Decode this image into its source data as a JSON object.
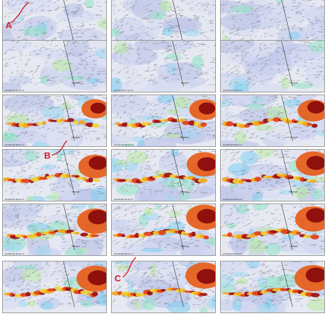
{
  "annotations": {
    "label_a": "A",
    "label_b": "B",
    "label_c": "C",
    "color": "#d0202a"
  },
  "panels": [
    {
      "row": 1,
      "col": 1,
      "intensity": 0.05,
      "time": "2013/02/28 07:00 UT",
      "place": "Midnight"
    },
    {
      "row": 1,
      "col": 2,
      "intensity": 0.05,
      "time": "2013/02/28 07:10 UT",
      "place": "Midnight"
    },
    {
      "row": 1,
      "col": 3,
      "intensity": 0.05,
      "time": "2013/02/28 07:20 UT",
      "place": "Midnight"
    },
    {
      "row": 2,
      "col": 1,
      "intensity": 0.12,
      "time": "2013/02/28 07:30 UT",
      "place": "Midnight"
    },
    {
      "row": 2,
      "col": 2,
      "intensity": 0.14,
      "time": "2013/02/28 07:40 UT",
      "place": "Midnight"
    },
    {
      "row": 2,
      "col": 3,
      "intensity": 0.16,
      "time": "2013/02/28 07:50 UT",
      "place": "Midnight"
    },
    {
      "row": 3,
      "col": 1,
      "intensity": 0.55,
      "time": "2013/02/28 08:00 UT",
      "place": "Midnight"
    },
    {
      "row": 3,
      "col": 2,
      "intensity": 0.65,
      "time": "2013/02/28 08:10 UT",
      "place": "Midnight"
    },
    {
      "row": 3,
      "col": 3,
      "intensity": 0.7,
      "time": "2013/02/28 08:20 UT",
      "place": "Midnight"
    },
    {
      "row": 4,
      "col": 1,
      "intensity": 0.8,
      "time": "2013/02/28 08:30 UT",
      "place": "Midnight"
    },
    {
      "row": 4,
      "col": 2,
      "intensity": 0.85,
      "time": "2013/02/28 08:40 UT",
      "place": "Midnight"
    },
    {
      "row": 4,
      "col": 3,
      "intensity": 0.85,
      "time": "2013/02/28 08:50 UT",
      "place": "Midnight"
    },
    {
      "row": 5,
      "col": 1,
      "intensity": 0.9,
      "time": "2013/02/28 09:00 UT",
      "place": "Midnight"
    },
    {
      "row": 5,
      "col": 2,
      "intensity": 0.9,
      "time": "2013/02/28 09:10 UT",
      "place": "Midnight"
    },
    {
      "row": 5,
      "col": 3,
      "intensity": 0.9,
      "time": "2013/02/28 09:20 UT",
      "place": "Midnight"
    },
    {
      "row": 6,
      "col": 1,
      "intensity": 0.95,
      "time": "",
      "place": ""
    },
    {
      "row": 6,
      "col": 2,
      "intensity": 0.95,
      "time": "",
      "place": ""
    },
    {
      "row": 6,
      "col": 3,
      "intensity": 0.95,
      "time": "",
      "place": ""
    }
  ]
}
